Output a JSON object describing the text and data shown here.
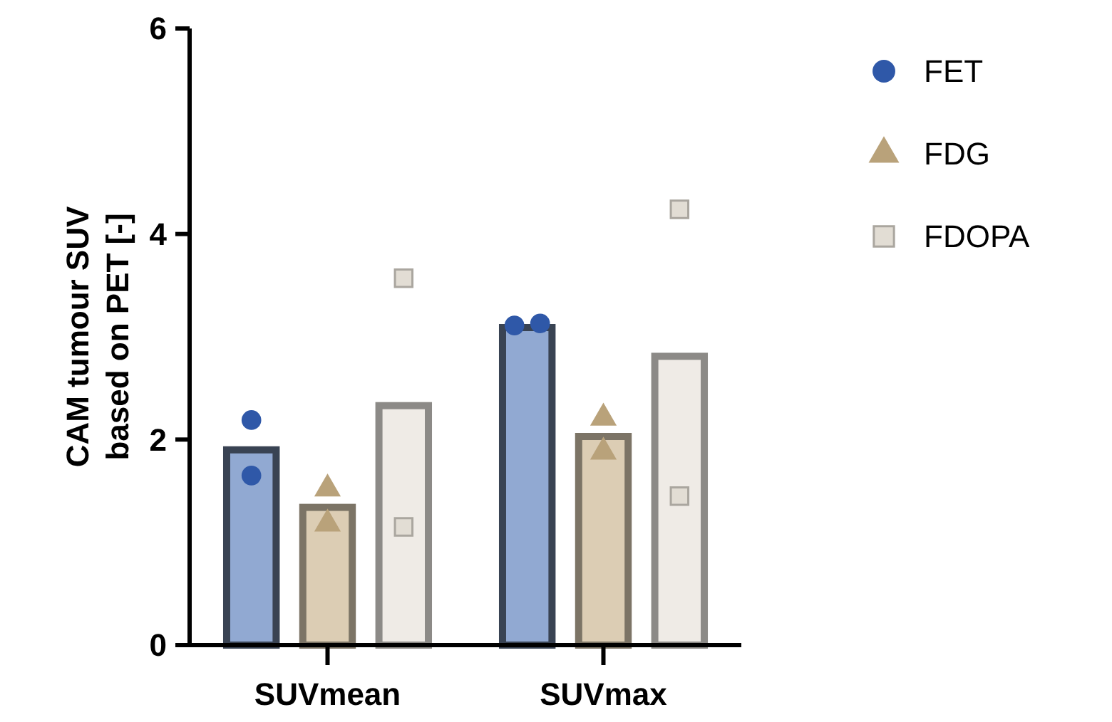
{
  "chart_data": {
    "type": "bar",
    "ylabel": "CAM tumour SUV based on PET [-]",
    "categories": [
      "SUVmean",
      "SUVmax"
    ],
    "series": [
      {
        "color": "#91a9d2",
        "values": [
          1.9,
          3.09
        ]
      },
      {
        "color": "#dccdb4",
        "values": [
          1.34,
          2.03
        ]
      },
      {
        "color": "#efebe6",
        "values": [
          2.33,
          2.81
        ]
      },
      {
        "type": "scatter",
        "name": "FET",
        "color": "#2f58a8",
        "marker": "circle",
        "x": [
          "SUVmean",
          "SUVmean",
          "SUVmax",
          "SUVmax"
        ],
        "values": [
          2.19,
          1.65,
          3.11,
          3.13
        ]
      },
      {
        "type": "scatter",
        "name": "FDG",
        "color": "#b9a27a",
        "marker": "triangle",
        "x": [
          "SUVmean",
          "SUVmean",
          "SUVmax",
          "SUVmax"
        ],
        "values": [
          1.52,
          1.18,
          2.21,
          1.88
        ]
      },
      {
        "type": "scatter",
        "name": "FDOPA",
        "color": "#e2ddd4",
        "marker": "square",
        "x": [
          "SUVmean",
          "SUVmean",
          "SUVmax",
          "SUVmax"
        ],
        "values": [
          3.57,
          1.15,
          4.24,
          1.45
        ]
      }
    ],
    "ylim": [
      0,
      6
    ],
    "yticks": [
      0,
      2,
      4,
      6
    ],
    "grid": false,
    "legend": "top right"
  }
}
